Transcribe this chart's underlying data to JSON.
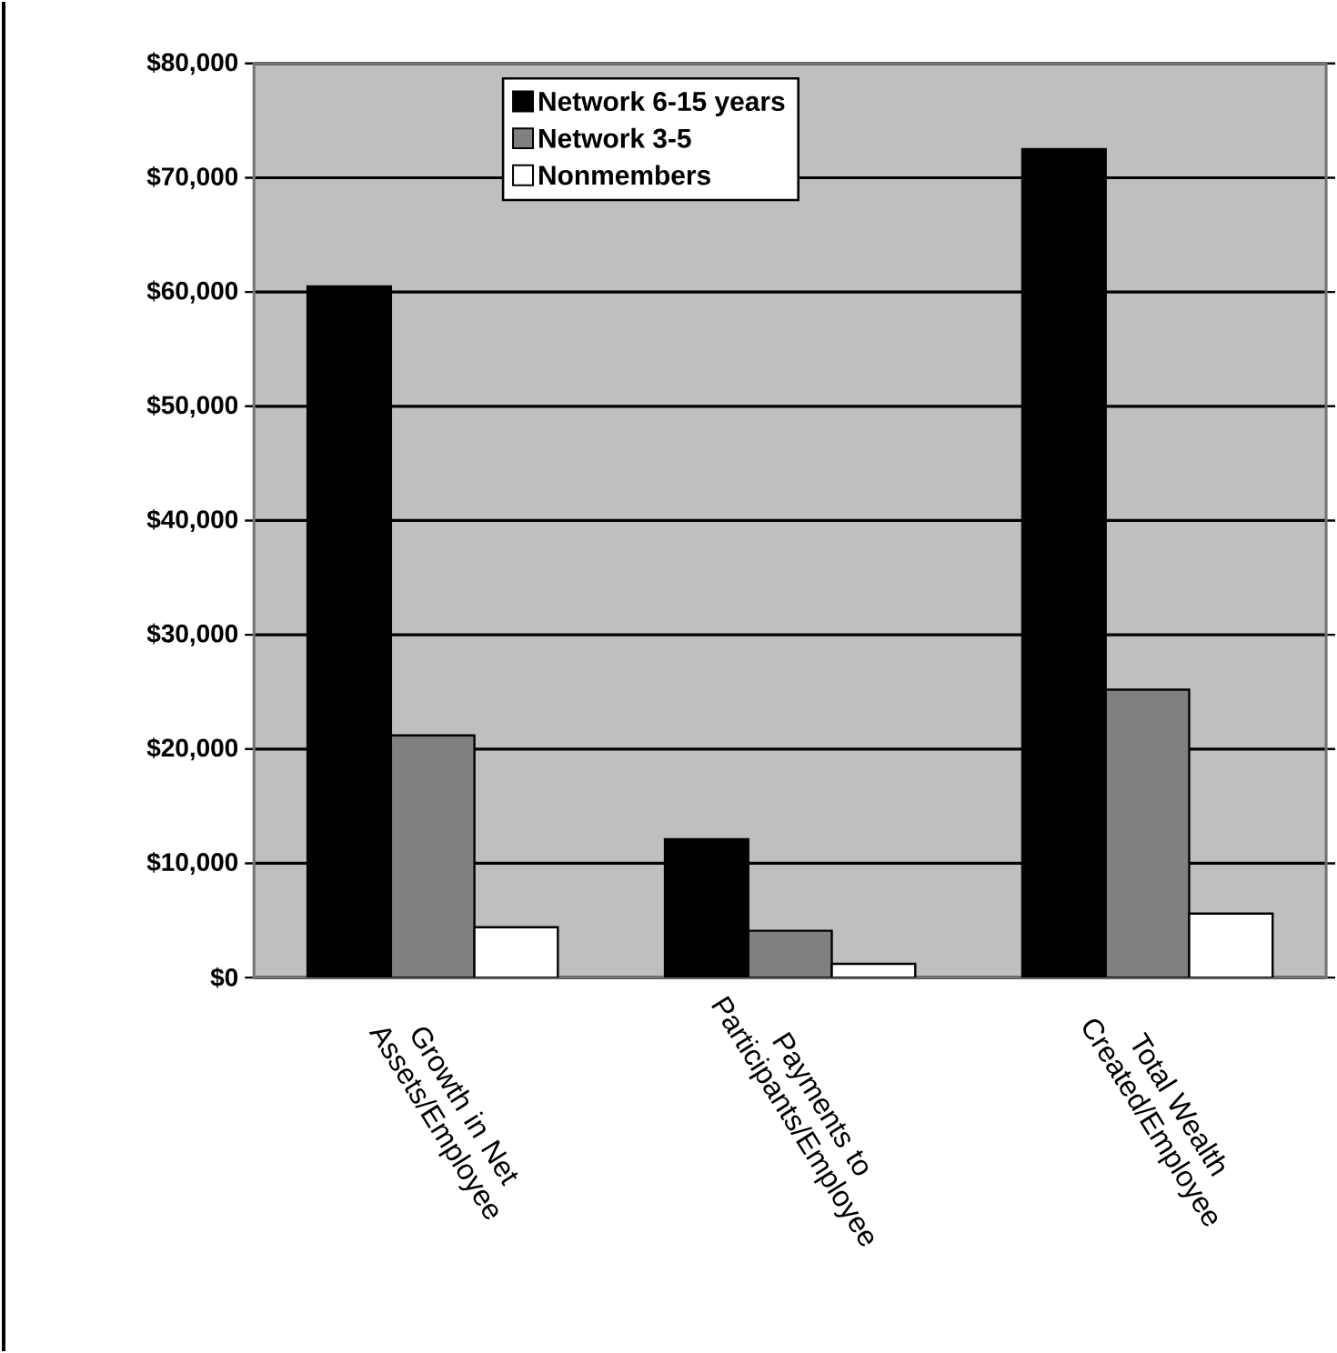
{
  "chart_data": {
    "type": "bar",
    "categories": [
      "Growth in Net Assets/Employee",
      "Payments to Participants/Employee",
      "Total Wealth Created/Employee"
    ],
    "series": [
      {
        "name": "Network 6-15 years",
        "color": "#000000",
        "values": [
          60500,
          12100,
          72500
        ]
      },
      {
        "name": "Network 3-5",
        "color": "#808080",
        "values": [
          21200,
          4100,
          25200
        ]
      },
      {
        "name": "Nonmembers",
        "color": "#ffffff",
        "values": [
          4400,
          1200,
          5600
        ]
      }
    ],
    "ylim": [
      0,
      80000
    ],
    "yticks": [
      {
        "value": 0,
        "label": "$0"
      },
      {
        "value": 10000,
        "label": "$10,000"
      },
      {
        "value": 20000,
        "label": "$20,000"
      },
      {
        "value": 30000,
        "label": "$30,000"
      },
      {
        "value": 40000,
        "label": "$40,000"
      },
      {
        "value": 50000,
        "label": "$50,000"
      },
      {
        "value": 60000,
        "label": "$60,000"
      },
      {
        "value": 70000,
        "label": "$70,000"
      },
      {
        "value": 80000,
        "label": "$80,000"
      }
    ],
    "grid": "y",
    "legend": "top"
  }
}
